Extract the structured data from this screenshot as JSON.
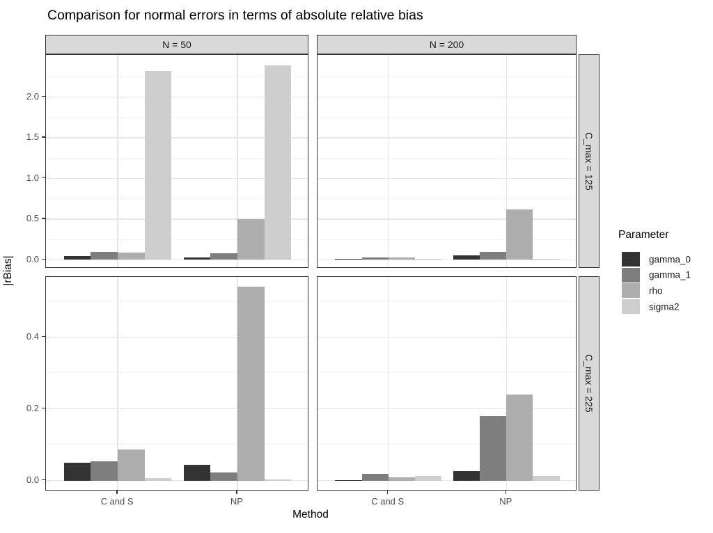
{
  "title": "Comparison for normal errors in terms of absolute relative bias",
  "chart_data": {
    "type": "bar",
    "title": "Comparison for normal errors in terms of absolute relative bias",
    "xlabel": "Method",
    "ylabel": "|rBias|",
    "grid": true,
    "legend_position": "right",
    "legend": {
      "title": "Parameter",
      "entries": [
        {
          "label": "gamma_0",
          "color": "#333333"
        },
        {
          "label": "gamma_1",
          "color": "#7e7e7e"
        },
        {
          "label": "rho",
          "color": "#adadad"
        },
        {
          "label": "sigma2",
          "color": "#cecece"
        }
      ]
    },
    "col_facets": [
      "N = 50",
      "N = 200"
    ],
    "row_facets": [
      "C_max = 125",
      "C_max = 225"
    ],
    "categories": [
      "C and S",
      "NP"
    ],
    "series_order": [
      "gamma_0",
      "gamma_1",
      "rho",
      "sigma2"
    ],
    "rows": [
      {
        "label": "C_max = 125",
        "ylim": [
          -0.108,
          2.515
        ],
        "yticks": [
          0.0,
          0.5,
          1.0,
          1.5,
          2.0
        ],
        "ytick_labels": [
          "0.0",
          "0.5",
          "1.0",
          "1.5",
          "2.0"
        ],
        "yminor": [
          0.25,
          0.75,
          1.25,
          1.75,
          2.25
        ],
        "panels": [
          {
            "col": "N = 50",
            "groups": [
              {
                "category": "C and S",
                "values": [
                  0.048,
                  0.095,
                  0.085,
                  2.32
                ]
              },
              {
                "category": "NP",
                "values": [
                  0.025,
                  0.08,
                  0.5,
                  2.39
                ]
              }
            ]
          },
          {
            "col": "N = 200",
            "groups": [
              {
                "category": "C and S",
                "values": [
                  0.015,
                  0.025,
                  0.03,
                  0.005
                ]
              },
              {
                "category": "NP",
                "values": [
                  0.055,
                  0.095,
                  0.62,
                  0.012
                ]
              }
            ]
          }
        ]
      },
      {
        "label": "C_max = 225",
        "ylim": [
          -0.03,
          0.5675
        ],
        "yticks": [
          0.0,
          0.2,
          0.4
        ],
        "ytick_labels": [
          "0.0",
          "0.2",
          "0.4"
        ],
        "yminor": [
          0.1,
          0.3,
          0.5
        ],
        "panels": [
          {
            "col": "N = 50",
            "groups": [
              {
                "category": "C and S",
                "values": [
                  0.049,
                  0.053,
                  0.086,
                  0.007
                ]
              },
              {
                "category": "NP",
                "values": [
                  0.044,
                  0.023,
                  0.54,
                  0.003
                ]
              }
            ]
          },
          {
            "col": "N = 200",
            "groups": [
              {
                "category": "C and S",
                "values": [
                  0.002,
                  0.019,
                  0.009,
                  0.013
                ]
              },
              {
                "category": "NP",
                "values": [
                  0.026,
                  0.18,
                  0.24,
                  0.012
                ]
              }
            ]
          }
        ]
      }
    ],
    "style": {
      "strip_bg": "#d9d9d9",
      "panel_border": "#333333",
      "grid_major": "#e5e5e5",
      "grid_minor": "#f2f2f2",
      "axis_text": "#4d4d4d",
      "text": "#000000"
    }
  }
}
